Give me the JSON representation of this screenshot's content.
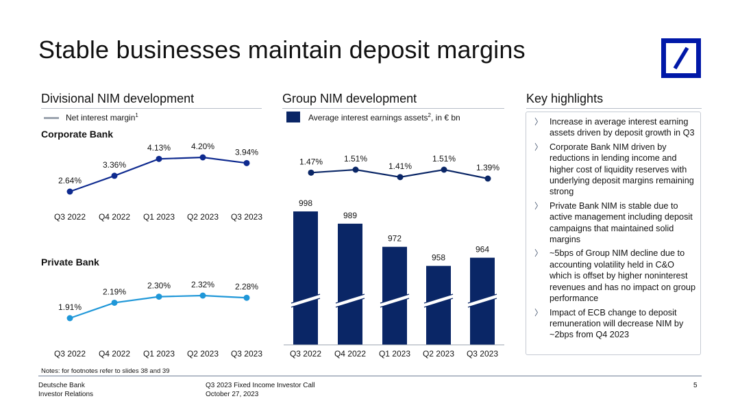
{
  "slide": {
    "title": "Stable businesses maintain deposit margins",
    "page_number": "5",
    "notes": "Notes: for footnotes refer to slides 38 and 39",
    "footer_left": [
      "Deutsche Bank",
      "Investor Relations"
    ],
    "footer_center": [
      "Q3 2023 Fixed Income Investor Call",
      "October 27, 2023"
    ],
    "colors": {
      "navy": "#0a2666",
      "corporate_line": "#0e2a8f",
      "private_line": "#1f97d8",
      "logo_blue": "#0018a8",
      "gray_rule": "#b8bec8"
    }
  },
  "divisional": {
    "heading": "Divisional NIM development",
    "legend": "Net interest margin",
    "legend_sup": "1"
  },
  "group": {
    "heading": "Group NIM development",
    "legend": "Average interest earnings assets",
    "legend_sup": "2",
    "legend_suffix": ", in € bn"
  },
  "highlights": {
    "heading": "Key highlights",
    "items": [
      "Increase in average interest earning assets driven by deposit growth in Q3",
      "Corporate Bank NIM driven by reductions in lending income and higher cost of liquidity reserves with underlying deposit margins remaining strong",
      "Private Bank NIM is stable due to active management including deposit campaigns that maintained solid margins",
      "~5bps of Group NIM decline due to accounting volatility held in C&O which is offset by higher noninterest revenues and has no impact on group performance",
      "Impact of ECB change to deposit remuneration will decrease NIM by ~2bps from Q4 2023"
    ]
  },
  "chart_data": [
    {
      "type": "line",
      "title": "Corporate Bank",
      "categories": [
        "Q3 2022",
        "Q4 2022",
        "Q1 2023",
        "Q2 2023",
        "Q3 2023"
      ],
      "values": [
        2.64,
        3.36,
        4.13,
        4.2,
        3.94
      ],
      "labels": [
        "2.64%",
        "3.36%",
        "4.13%",
        "4.20%",
        "3.94%"
      ],
      "unit": "%",
      "color": "#0e2a8f"
    },
    {
      "type": "line",
      "title": "Private Bank",
      "categories": [
        "Q3 2022",
        "Q4 2022",
        "Q1 2023",
        "Q2 2023",
        "Q3 2023"
      ],
      "values": [
        1.91,
        2.19,
        2.3,
        2.32,
        2.28
      ],
      "labels": [
        "1.91%",
        "2.19%",
        "2.30%",
        "2.32%",
        "2.28%"
      ],
      "unit": "%",
      "color": "#1f97d8"
    },
    {
      "type": "line",
      "title": "",
      "categories": [
        "Q3 2022",
        "Q4 2022",
        "Q1 2023",
        "Q2 2023",
        "Q3 2023"
      ],
      "values": [
        1.47,
        1.51,
        1.41,
        1.51,
        1.39
      ],
      "labels": [
        "1.47%",
        "1.51%",
        "1.41%",
        "1.51%",
        "1.39%"
      ],
      "unit": "%",
      "color": "#0a2666"
    },
    {
      "type": "bar",
      "title": "",
      "categories": [
        "Q3 2022",
        "Q4 2022",
        "Q1 2023",
        "Q2 2023",
        "Q3 2023"
      ],
      "values": [
        998,
        989,
        972,
        958,
        964
      ],
      "labels": [
        "998",
        "989",
        "972",
        "958",
        "964"
      ],
      "axis_break": true,
      "color": "#0a2666"
    }
  ]
}
